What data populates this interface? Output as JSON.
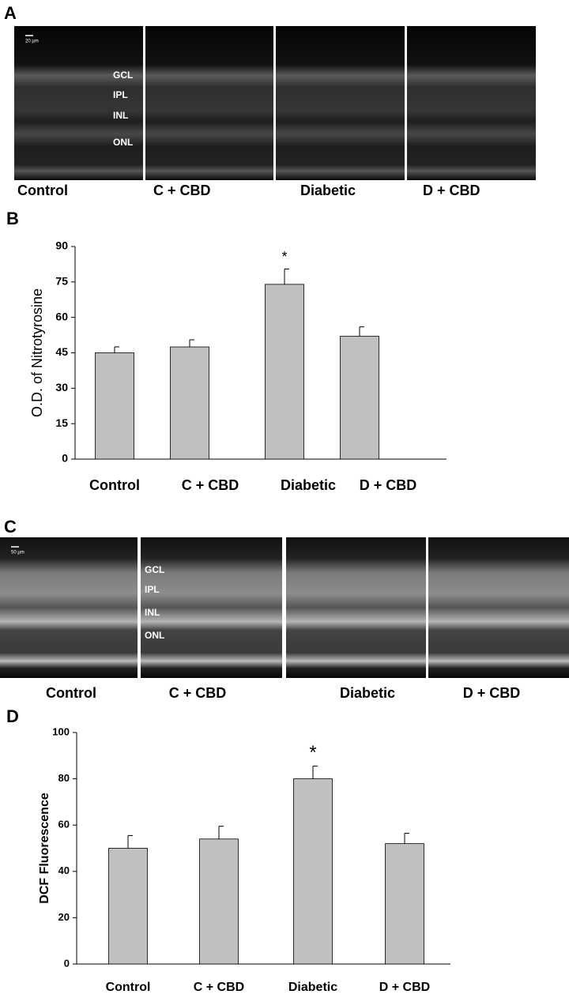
{
  "image_panels": [
    {
      "panel_label": "A",
      "scale_bar": "20 µm",
      "layers": [
        "GCL",
        "IPL",
        "INL",
        "ONL"
      ],
      "labels": [
        "Control",
        "C + CBD",
        "Diabetic",
        "D + CBD"
      ]
    },
    {
      "panel_label": "C",
      "scale_bar": "50 µm",
      "layers": [
        "GCL",
        "IPL",
        "INL",
        "ONL"
      ],
      "labels": [
        "Control",
        "C + CBD",
        "Diabetic",
        "D + CBD"
      ]
    }
  ],
  "chart_data": [
    {
      "type": "bar",
      "panel_label": "B",
      "y_label": "O.D. of Nitrotyrosine",
      "categories": [
        "Control",
        "C + CBD",
        "Diabetic",
        "D + CBD"
      ],
      "series": [
        {
          "color": "#c0c0c0",
          "values": [
            45,
            47.5,
            74,
            52
          ],
          "errors": [
            2.5,
            3,
            6.5,
            4
          ]
        }
      ],
      "annotation": "*",
      "ylim": [
        0,
        90
      ],
      "yticks": [
        0,
        15,
        30,
        45,
        60,
        75,
        90
      ],
      "grid": false
    },
    {
      "type": "bar",
      "panel_label": "D",
      "y_label": "DCF Fluorescence",
      "categories": [
        "Control",
        "C + CBD",
        "Diabetic",
        "D + CBD"
      ],
      "series": [
        {
          "color": "#c0c0c0",
          "values": [
            50,
            54,
            80,
            52
          ],
          "errors": [
            5.5,
            5.5,
            5.5,
            4.5
          ]
        }
      ],
      "annotation": "*",
      "ylim": [
        0,
        100
      ],
      "yticks": [
        0,
        20,
        40,
        60,
        80,
        100
      ],
      "grid": false
    }
  ]
}
